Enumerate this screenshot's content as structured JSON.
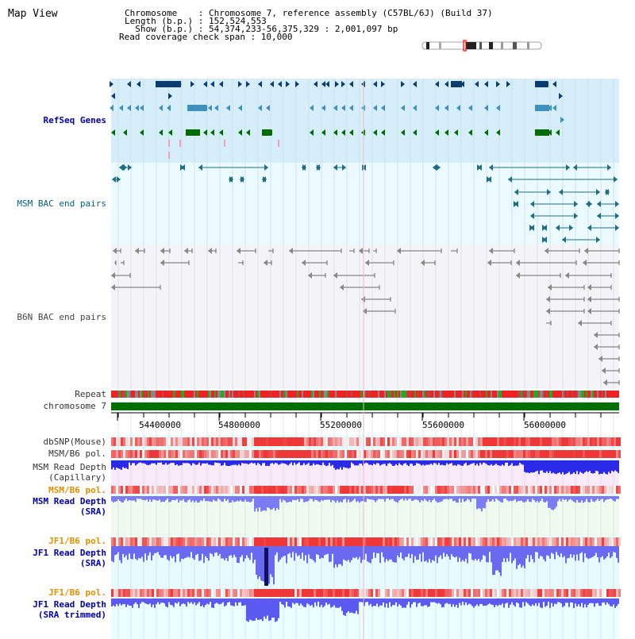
{
  "title": "Map View",
  "info": {
    "chromosome": "Chromosome    : Chromosome 7, reference assembly (C57BL/6J) (Build 37)",
    "length": "Length (b.p.) : 152,524,553",
    "show": "  Show (b.p.) : 54,374,233-56,375,329 : 2,001,097 bp",
    "coverage": "Read coverage check span : 10,000"
  },
  "tracks": {
    "refseq": "RefSeq Genes",
    "msm_bac": "MSM BAC end pairs",
    "b6n_bac": "B6N BAC end pairs",
    "repeat": "Repeat",
    "chromosome": "chromosome 7",
    "dbsnp": "dbSNP(Mouse)",
    "msm_b6_pol": "MSM/B6 pol.",
    "msm_depth_cap_1": "MSM Read Depth",
    "msm_depth_cap_2": "(Capillary)",
    "msm_b6_pol2": "MSM/B6 pol.",
    "msm_depth_sra_1": "MSM Read Depth",
    "msm_depth_sra_2": "(SRA)",
    "jf1_b6_pol": "JF1/B6 pol.",
    "jf1_depth_sra_1": "JF1 Read Depth",
    "jf1_depth_sra_2": "(SRA)",
    "jf1_b6_pol2": "JF1/B6 pol.",
    "jf1_depth_trim_1": "JF1 Read Depth",
    "jf1_depth_trim_2": "(SRA trimmed)"
  },
  "axis_ticks": [
    "54400000",
    "54800000",
    "55200000",
    "55600000",
    "56000000"
  ],
  "colors": {
    "refseq_bg": "#d6eefa",
    "bac_bg": "#eafaff",
    "b6n_bg": "#f4f4f8",
    "chromosome_bar": "#007000",
    "depth_blue": "#3a3aff",
    "snp_red": "#ee1111"
  }
}
